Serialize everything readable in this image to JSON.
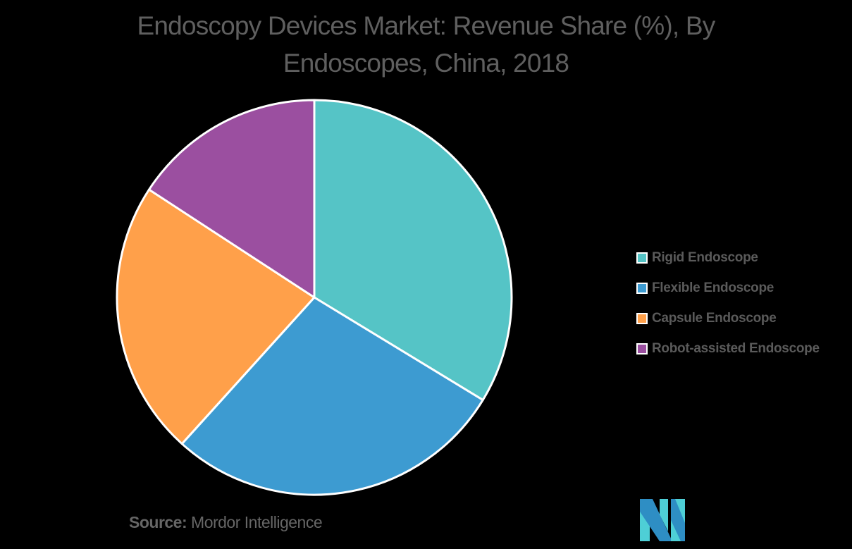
{
  "title": {
    "line1": "Endoscopy Devices Market: Revenue Share (%), By",
    "line2": "Endoscopes, China, 2018"
  },
  "legend": {
    "items": [
      {
        "label": "Rigid Endoscope",
        "color": "#55C4C6"
      },
      {
        "label": "Flexible Endoscope",
        "color": "#3D9BD1"
      },
      {
        "label": "Capsule Endoscope",
        "color": "#FFA04A"
      },
      {
        "label": "Robot-assisted Endoscope",
        "color": "#9B4FA0"
      }
    ]
  },
  "source": {
    "prefix": "Source:",
    "name": "Mordor Intelligence"
  },
  "logo": {
    "colors": {
      "dark": "#2E8EC4",
      "light": "#4ECFD6"
    }
  },
  "chart_data": {
    "type": "pie",
    "title": "Endoscopy Devices Market: Revenue Share (%), By Endoscopes, China, 2018",
    "categories": [
      "Rigid Endoscope",
      "Flexible Endoscope",
      "Capsule Endoscope",
      "Robot-assisted Endoscope"
    ],
    "values": [
      33.7,
      28.0,
      22.5,
      15.8
    ],
    "colors": [
      "#55C4C6",
      "#3D9BD1",
      "#FFA04A",
      "#9B4FA0"
    ],
    "start_angle": "12 o'clock, clockwise",
    "data_labels": false,
    "legend_position": "right",
    "source": "Mordor Intelligence"
  }
}
